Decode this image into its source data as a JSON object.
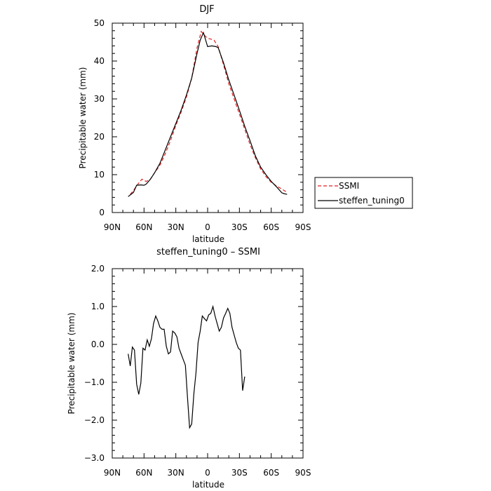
{
  "chart_data": [
    {
      "type": "line",
      "title": "DJF",
      "xlabel": "latitude",
      "ylabel": "Precipitable water (mm)",
      "xlim": [
        90,
        -90
      ],
      "ylim": [
        0,
        50
      ],
      "x_ticks": [
        "90N",
        "60N",
        "30N",
        "0",
        "30S",
        "60S",
        "90S"
      ],
      "y_ticks": [
        "0",
        "10",
        "20",
        "30",
        "40",
        "50"
      ],
      "legend_position": "right",
      "series": [
        {
          "name": "SSMI",
          "color": "#e02020",
          "dash": "dashed",
          "x": [
            73,
            70,
            65,
            62,
            58,
            54,
            50,
            45,
            40,
            35,
            30,
            25,
            20,
            15,
            10,
            6,
            2,
            0,
            -3,
            -6,
            -10,
            -15,
            -20,
            -25,
            -30,
            -35,
            -40,
            -45,
            -50,
            -55,
            -60,
            -65,
            -70,
            -74
          ],
          "y": [
            4.8,
            5.8,
            7.8,
            8.8,
            8.2,
            8.8,
            10.5,
            12.5,
            15.5,
            19.0,
            23.0,
            26.5,
            30.5,
            35.5,
            43.5,
            47.8,
            46.5,
            46.0,
            45.8,
            45.5,
            43.8,
            39.0,
            34.0,
            30.0,
            26.0,
            22.0,
            18.0,
            14.5,
            11.5,
            9.5,
            8.0,
            7.0,
            6.2,
            5.5
          ]
        },
        {
          "name": "steffen_tuning0",
          "color": "#000000",
          "dash": "solid",
          "x": [
            75,
            70,
            67,
            63,
            60,
            58,
            54,
            50,
            45,
            40,
            35,
            30,
            25,
            20,
            15,
            10,
            7,
            4,
            0,
            -4,
            -8,
            -10,
            -15,
            -20,
            -25,
            -30,
            -35,
            -40,
            -45,
            -50,
            -55,
            -60,
            -65,
            -70,
            -72,
            -75
          ],
          "y": [
            4.2,
            5.3,
            7.2,
            7.3,
            7.2,
            7.5,
            8.8,
            10.5,
            13.0,
            16.5,
            20.0,
            23.5,
            27.0,
            31.0,
            35.5,
            42.0,
            45.5,
            47.5,
            43.8,
            44.0,
            43.8,
            43.5,
            39.5,
            35.0,
            31.0,
            27.0,
            22.8,
            19.0,
            15.0,
            12.0,
            10.0,
            8.2,
            6.8,
            5.2,
            5.0,
            4.8
          ]
        }
      ]
    },
    {
      "type": "line",
      "title": "steffen_tuning0 – SSMI",
      "xlabel": "latitude",
      "ylabel": "Precipitable water (mm)",
      "xlim": [
        90,
        -90
      ],
      "ylim": [
        -3.0,
        2.0
      ],
      "x_ticks": [
        "90N",
        "60N",
        "30N",
        "0",
        "30S",
        "60S",
        "90S"
      ],
      "y_ticks": [
        "−3.0",
        "−2.0",
        "−1.0",
        "0.0",
        "1.0",
        "2.0"
      ],
      "series": [
        {
          "name": "",
          "color": "#000000",
          "dash": "solid",
          "x": [
            75,
            73,
            71,
            69,
            67,
            65,
            63,
            61,
            59,
            57,
            55,
            53,
            51,
            49,
            47,
            45,
            43,
            41,
            39,
            37,
            35,
            33,
            31,
            29,
            27,
            25,
            23,
            21,
            19,
            17,
            15,
            13,
            11,
            9,
            7,
            5,
            3,
            1,
            -1,
            -3,
            -5,
            -7,
            -9,
            -11,
            -13,
            -15,
            -17,
            -19,
            -21,
            -23,
            -25,
            -27,
            -29,
            -31,
            -33,
            -35,
            -37,
            -39,
            -41,
            -43,
            -45,
            -47,
            -49,
            -51,
            -53,
            -55,
            -57,
            -59,
            -61,
            -63,
            -65,
            -67,
            -69,
            -71,
            -73
          ],
          "y": [
            -0.25,
            -0.57,
            -0.07,
            -0.15,
            -1.05,
            -1.32,
            -1.02,
            -0.1,
            -0.15,
            0.12,
            -0.05,
            0.15,
            0.55,
            0.75,
            0.62,
            0.45,
            0.4,
            0.4,
            -0.05,
            -0.25,
            -0.2,
            0.35,
            0.3,
            0.2,
            -0.1,
            -0.25,
            -0.4,
            -0.55,
            -1.4,
            -2.2,
            -2.1,
            -1.3,
            -0.75,
            0.05,
            0.35,
            0.75,
            0.68,
            0.62,
            0.78,
            0.82,
            1.0,
            0.75,
            0.55,
            0.35,
            0.45,
            0.7,
            0.82,
            0.95,
            0.82,
            0.45,
            0.25,
            0.05,
            -0.1,
            -0.15,
            -1.22,
            -0.85,
            -0.85,
            -0.85,
            -0.85,
            -0.85,
            -0.85,
            -0.85,
            -0.85,
            -0.85,
            -0.85,
            -0.85,
            -0.85,
            -0.85,
            -0.85,
            -0.85,
            -0.85,
            -0.85,
            -0.85,
            -0.85,
            -0.85
          ]
        }
      ]
    }
  ]
}
